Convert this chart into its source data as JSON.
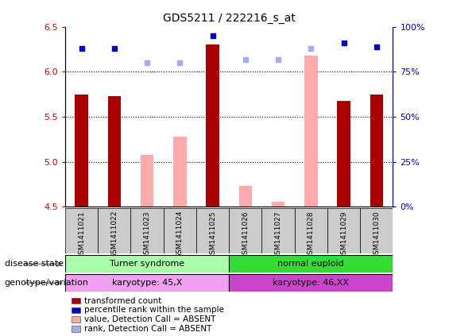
{
  "title": "GDS5211 / 222216_s_at",
  "samples": [
    "GSM1411021",
    "GSM1411022",
    "GSM1411023",
    "GSM1411024",
    "GSM1411025",
    "GSM1411026",
    "GSM1411027",
    "GSM1411028",
    "GSM1411029",
    "GSM1411030"
  ],
  "transformed_count": [
    5.75,
    5.73,
    null,
    null,
    6.3,
    null,
    null,
    null,
    5.68,
    5.75
  ],
  "percentile_rank": [
    88,
    88,
    null,
    null,
    95,
    null,
    null,
    null,
    91,
    89
  ],
  "value_absent": [
    null,
    null,
    5.08,
    5.28,
    null,
    4.73,
    4.55,
    6.18,
    null,
    null
  ],
  "rank_absent": [
    null,
    null,
    80,
    80,
    null,
    82,
    82,
    88,
    null,
    null
  ],
  "ylim_left": [
    4.5,
    6.5
  ],
  "ylim_right": [
    0,
    100
  ],
  "yticks_left": [
    4.5,
    5.0,
    5.5,
    6.0,
    6.5
  ],
  "yticks_right": [
    0,
    25,
    50,
    75,
    100
  ],
  "ytick_labels_right": [
    "0%",
    "25%",
    "50%",
    "75%",
    "100%"
  ],
  "hlines": [
    5.0,
    5.5,
    6.0
  ],
  "disease_state": [
    {
      "label": "Turner syndrome",
      "start": 0,
      "end": 4,
      "color": "#aaffaa"
    },
    {
      "label": "normal euploid",
      "start": 5,
      "end": 9,
      "color": "#33dd33"
    }
  ],
  "genotype": [
    {
      "label": "karyotype: 45,X",
      "start": 0,
      "end": 4,
      "color": "#f0a0f0"
    },
    {
      "label": "karyotype: 46,XX",
      "start": 5,
      "end": 9,
      "color": "#cc44cc"
    }
  ],
  "bar_color_dark_red": "#aa0000",
  "bar_color_pink": "#ffaaaa",
  "dot_color_blue": "#0000cc",
  "dot_color_light_blue": "#aaaaee",
  "label_left_color": "#cc0000",
  "label_right_color": "#0000cc",
  "background_color": "#cccccc",
  "plot_bg": "#ffffff",
  "legend_items": [
    {
      "label": "transformed count",
      "color": "#aa0000"
    },
    {
      "label": "percentile rank within the sample",
      "color": "#0000cc"
    },
    {
      "label": "value, Detection Call = ABSENT",
      "color": "#ffaaaa"
    },
    {
      "label": "rank, Detection Call = ABSENT",
      "color": "#aaaaee"
    }
  ],
  "group_left_ds": "disease state",
  "group_left_gt": "genotype/variation",
  "bar_width": 0.4
}
